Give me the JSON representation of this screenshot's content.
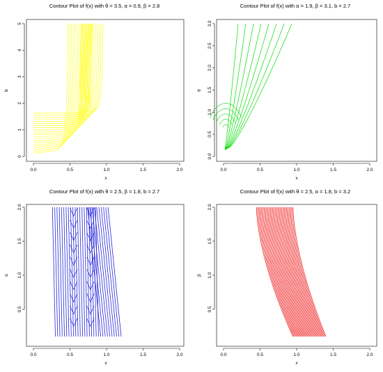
{
  "chart_data": [
    {
      "type": "contour",
      "title": "Contour Plot of f(x) with θ = 3.5, α = 0.9, β = 2.8",
      "xlabel": "x",
      "ylabel": "b",
      "xlim": [
        0.0,
        2.0
      ],
      "ylim": [
        0.0,
        5.0
      ],
      "xticks": [
        "0.0",
        "0.5",
        "1.0",
        "1.5",
        "2.0"
      ],
      "yticks": [
        "0",
        "1",
        "2",
        "3",
        "4",
        "5"
      ],
      "color": "#ffff00",
      "contour_x_extent": [
        0.0,
        1.0
      ],
      "contour_y_extent": [
        0.1,
        5.0
      ],
      "num_levels": 20
    },
    {
      "type": "contour",
      "title": "Contour Plot of f(x) with α = 1.9, β = 3.1, b = 2.7",
      "xlabel": "x",
      "ylabel": "θ",
      "xlim": [
        0.0,
        2.0
      ],
      "ylim": [
        0.0,
        3.0
      ],
      "xticks": [
        "0.0",
        "0.5",
        "1.0",
        "1.5",
        "2.0"
      ],
      "yticks": [
        "0.0",
        "0.5",
        "1.0",
        "1.5",
        "2.0",
        "2.5",
        "3.0"
      ],
      "color": "#00dd00",
      "contour_x_extent": [
        0.0,
        0.8
      ],
      "contour_y_extent": [
        0.1,
        3.0
      ],
      "num_levels": 8
    },
    {
      "type": "contour",
      "title": "Contour Plot of f(x) with θ = 2.5, β = 1.8, b = 2.7",
      "xlabel": "x",
      "ylabel": "α",
      "xlim": [
        0.0,
        2.0
      ],
      "ylim": [
        0.1,
        2.0
      ],
      "xticks": [
        "0.0",
        "0.5",
        "1.0",
        "1.5",
        "2.0"
      ],
      "yticks": [
        "0.5",
        "1.0",
        "1.5",
        "2.0"
      ],
      "color": "#2222dd",
      "contour_x_extent": [
        0.3,
        1.2
      ],
      "contour_y_extent": [
        0.1,
        2.0
      ],
      "num_levels": 30
    },
    {
      "type": "contour",
      "title": "Contour Plot of f(x) with θ = 2.5, α = 1.8, b = 3.2",
      "xlabel": "x",
      "ylabel": "β",
      "xlim": [
        0.0,
        2.0
      ],
      "ylim": [
        0.1,
        2.0
      ],
      "xticks": [
        "0.0",
        "0.5",
        "1.0",
        "1.5",
        "2.0"
      ],
      "yticks": [
        "0.5",
        "1.0",
        "1.5",
        "2.0"
      ],
      "color": "#ee0000",
      "contour_x_extent": [
        0.45,
        1.4
      ],
      "contour_y_extent": [
        0.1,
        2.0
      ],
      "num_levels": 30
    }
  ]
}
